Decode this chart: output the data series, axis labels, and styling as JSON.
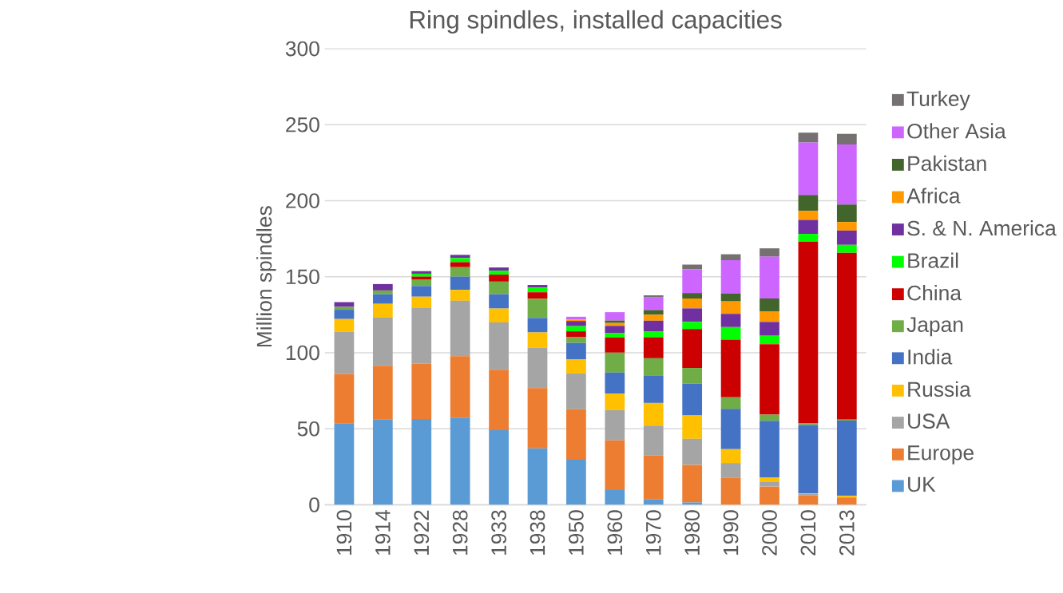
{
  "chart_data": {
    "type": "bar",
    "stacked": true,
    "title": "Ring spindles, installed capacities",
    "ylabel": "Million spindles",
    "categories": [
      "1910",
      "1914",
      "1922",
      "1928",
      "1933",
      "1938",
      "1950",
      "1960",
      "1970",
      "1980",
      "1990",
      "2000",
      "2010",
      "2013"
    ],
    "ylim": [
      0,
      300
    ],
    "yticks": [
      0,
      50,
      100,
      150,
      200,
      250,
      300
    ],
    "grid": "y",
    "legend": "right",
    "series": [
      {
        "name": "UK",
        "color": "#5b9bd5",
        "values": [
          53.7,
          56.3,
          56.4,
          57.3,
          49.1,
          37.1,
          29.7,
          9.7,
          3.5,
          1.6,
          0,
          0,
          0,
          0
        ]
      },
      {
        "name": "Europe",
        "color": "#ed7d31",
        "values": [
          32.2,
          35.2,
          36.5,
          40.5,
          39.8,
          39.7,
          33.2,
          32.7,
          29.0,
          24.7,
          17.7,
          12.0,
          6.3,
          4.9
        ]
      },
      {
        "name": "USA",
        "color": "#a5a5a5",
        "values": [
          28.0,
          31.6,
          36.7,
          36.4,
          31.0,
          26.4,
          23.5,
          19.9,
          19.6,
          17.1,
          9.8,
          3.3,
          0.9,
          0
        ]
      },
      {
        "name": "Russia",
        "color": "#ffc000",
        "values": [
          8.3,
          9.1,
          7.3,
          7.2,
          9.2,
          10.2,
          9.4,
          10.9,
          14.9,
          15.4,
          9.1,
          2.6,
          0.4,
          1.0
        ]
      },
      {
        "name": "India",
        "color": "#4472c4",
        "values": [
          6.1,
          6.3,
          7.0,
          8.7,
          9.4,
          9.5,
          10.7,
          13.8,
          17.8,
          21.0,
          26.5,
          37.4,
          44.9,
          49.5
        ]
      },
      {
        "name": "Japan",
        "color": "#70ad47",
        "values": [
          1.9,
          2.5,
          4.4,
          6.2,
          8.3,
          12.6,
          3.7,
          13.1,
          11.6,
          10.2,
          7.6,
          4.0,
          1.0,
          0.7
        ]
      },
      {
        "name": "China",
        "color": "#cc0000",
        "values": [
          0,
          0,
          1.8,
          3.3,
          4.6,
          4.3,
          3.9,
          9.9,
          13.8,
          25.6,
          38.0,
          46.4,
          119.6,
          109.7
        ]
      },
      {
        "name": "Brazil",
        "color": "#00ff00",
        "values": [
          0,
          0,
          1.9,
          2.7,
          2.6,
          3.1,
          3.4,
          3.1,
          3.7,
          4.7,
          8.2,
          5.5,
          5.1,
          5.2
        ]
      },
      {
        "name": "S. & N. America",
        "color": "#7030a0",
        "values": [
          3.1,
          4.2,
          1.7,
          2.1,
          2.1,
          1.7,
          3.4,
          4.6,
          7.2,
          8.9,
          8.7,
          9.1,
          9.2,
          9.4
        ]
      },
      {
        "name": "Africa",
        "color": "#ff9900",
        "values": [
          0,
          0,
          0,
          0,
          0,
          0,
          0.9,
          1.9,
          3.9,
          6.5,
          8.2,
          7.0,
          6.0,
          5.6
        ]
      },
      {
        "name": "Pakistan",
        "color": "#41652a",
        "values": [
          0,
          0,
          0,
          0,
          0,
          0,
          0,
          1.6,
          3.1,
          3.6,
          5.2,
          8.4,
          10.4,
          11.5
        ]
      },
      {
        "name": "Other Asia",
        "color": "#cc66ff",
        "values": [
          0,
          0,
          0,
          0,
          0,
          0,
          1.9,
          5.5,
          8.3,
          15.6,
          21.9,
          27.5,
          34.5,
          39.5
        ]
      },
      {
        "name": "Turkey",
        "color": "#767171",
        "values": [
          0,
          0,
          0,
          0,
          0,
          0,
          0,
          0,
          1.4,
          3.1,
          3.9,
          5.5,
          6.5,
          7.0
        ]
      }
    ]
  }
}
